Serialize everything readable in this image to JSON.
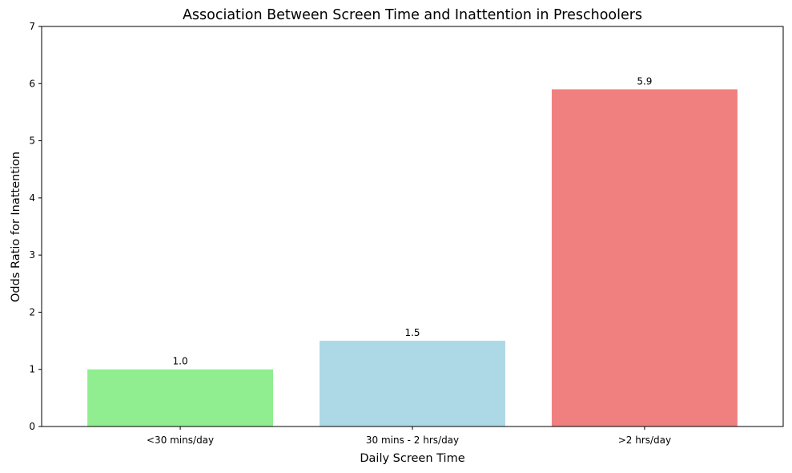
{
  "chart_data": {
    "type": "bar",
    "title": "Association Between Screen Time and Inattention in Preschoolers",
    "xlabel": "Daily Screen Time",
    "ylabel": "Odds Ratio for Inattention",
    "categories": [
      "<30 mins/day",
      "30 mins - 2 hrs/day",
      ">2 hrs/day"
    ],
    "values": [
      1.0,
      1.5,
      5.9
    ],
    "data_labels": [
      "1.0",
      "1.5",
      "5.9"
    ],
    "colors": [
      "#90ee90",
      "#add8e6",
      "#f08080"
    ],
    "ylim": [
      0,
      7
    ],
    "yticks": [
      0,
      1,
      2,
      3,
      4,
      5,
      6,
      7
    ],
    "grid": false,
    "legend": "none"
  }
}
